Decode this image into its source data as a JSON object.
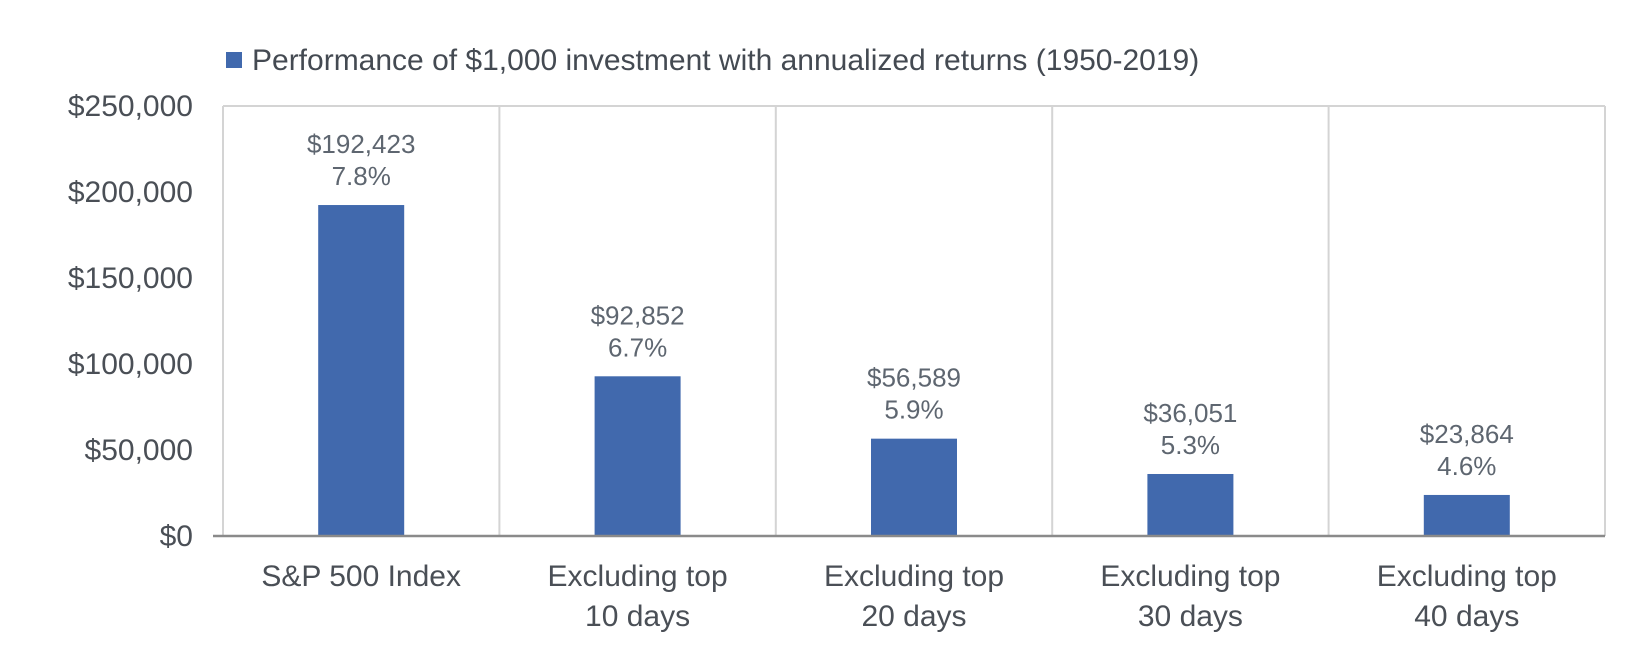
{
  "chart_data": {
    "type": "bar",
    "legend": {
      "label": "Performance of $1,000 investment with annualized returns (1950-2019)",
      "placement": "top-left",
      "color": "#4169ad"
    },
    "categories": [
      [
        "S&P 500 Index"
      ],
      [
        "Excluding top",
        "10 days"
      ],
      [
        "Excluding top",
        "20 days"
      ],
      [
        "Excluding top",
        "30 days"
      ],
      [
        "Excluding top",
        "40 days"
      ]
    ],
    "series": [
      {
        "name": "Performance of $1,000 investment with annualized returns (1950-2019)",
        "values": [
          192423,
          92852,
          56589,
          36051,
          23864
        ],
        "value_labels": [
          "$192,423",
          "$92,852",
          "$56,589",
          "$36,051",
          "$23,864"
        ],
        "return_labels": [
          "7.8%",
          "6.7%",
          "5.9%",
          "5.3%",
          "4.6%"
        ]
      }
    ],
    "ylim": [
      0,
      250000
    ],
    "yticks": [
      0,
      50000,
      100000,
      150000,
      200000,
      250000
    ],
    "ytick_labels": [
      "$0",
      "$50,000",
      "$100,000",
      "$150,000",
      "$200,000",
      "$250,000"
    ],
    "grid": {
      "vertical_category_dividers": true,
      "horizontal": false
    },
    "colors": {
      "bar": "#4169ad",
      "grid": "#d4d4d4",
      "axis": "#8a8a8a"
    }
  }
}
